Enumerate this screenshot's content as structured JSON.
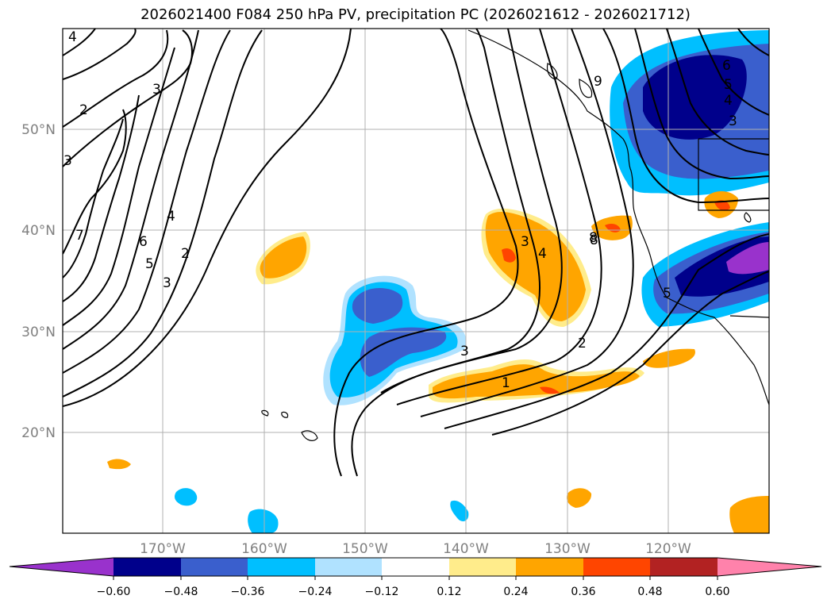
{
  "title": "2026021400 F084 250 hPa PV, precipitation PC (2026021612 - 2026021712)",
  "map": {
    "lat_labels": [
      "50°N",
      "40°N",
      "30°N",
      "20°N"
    ],
    "lon_labels": [
      "170°W",
      "160°W",
      "150°W",
      "140°W",
      "130°W",
      "120°W"
    ],
    "contour_labels": [
      "4",
      "3",
      "2",
      "3",
      "7",
      "6",
      "5",
      "4",
      "3",
      "2",
      "3",
      "4",
      "3",
      "2",
      "1",
      "9",
      "8",
      "6",
      "5",
      "4",
      "3",
      "5",
      "8"
    ]
  },
  "colorbar": {
    "colors": [
      "#9932cc",
      "#00008b",
      "#3a5fcd",
      "#00bfff",
      "#b0e2ff",
      "#ffffff",
      "#ffec8b",
      "#ffa500",
      "#ff4500",
      "#b22222",
      "#ff82ab"
    ],
    "ticks": [
      "−0.60",
      "−0.48",
      "−0.36",
      "−0.24",
      "−0.12",
      "0.12",
      "0.24",
      "0.36",
      "0.48",
      "0.60"
    ]
  }
}
